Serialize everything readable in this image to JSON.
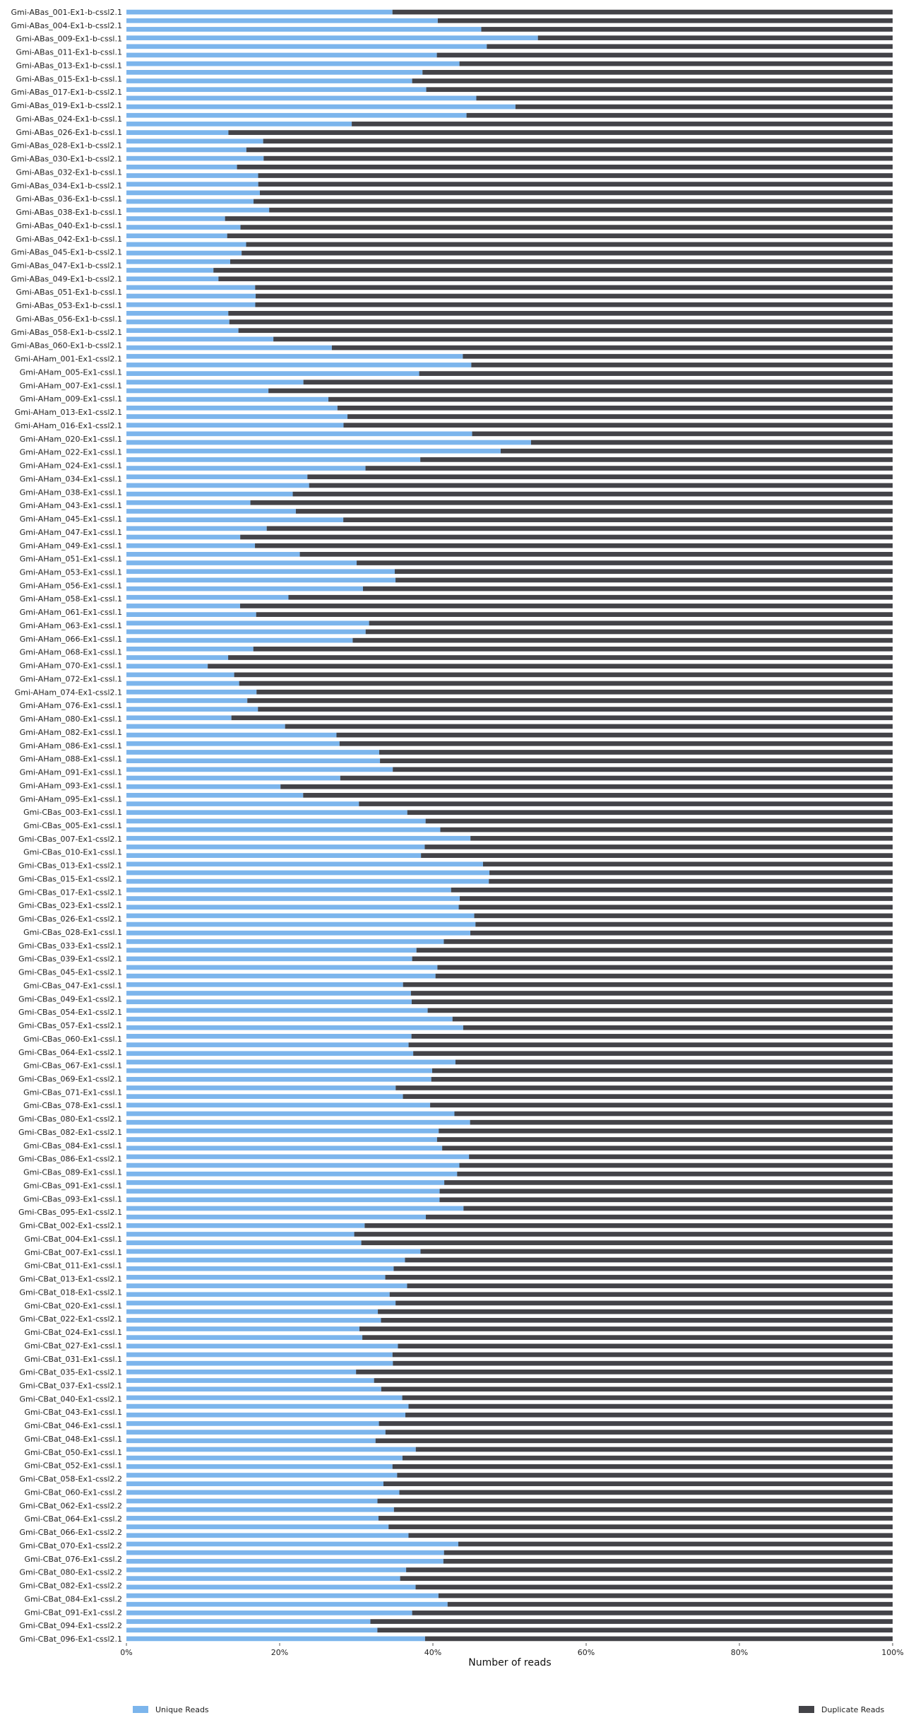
{
  "chart_data": {
    "type": "bar",
    "orientation": "horizontal",
    "stacked": true,
    "percent": true,
    "xlabel": "Number of reads",
    "xlim": [
      0,
      100
    ],
    "xticks": [
      "0%",
      "20%",
      "40%",
      "60%",
      "80%",
      "100%"
    ],
    "grid": false,
    "legend_position": "bottom",
    "series": [
      {
        "name": "Unique Reads",
        "color": "#7cb5ec"
      },
      {
        "name": "Duplicate Reads",
        "color": "#434348"
      }
    ],
    "categories": [
      "Gmi-ABas_001-Ex1-b-cssl2.1",
      "Gmi-ABas_004-Ex1-b-cssl2.1",
      "Gmi-ABas_009-Ex1-b-cssl.1",
      "Gmi-ABas_011-Ex1-b-cssl.1",
      "Gmi-ABas_013-Ex1-b-cssl.1",
      "Gmi-ABas_015-Ex1-b-cssl.1",
      "Gmi-ABas_017-Ex1-b-cssl2.1",
      "Gmi-ABas_019-Ex1-b-cssl2.1",
      "Gmi-ABas_024-Ex1-b-cssl.1",
      "Gmi-ABas_026-Ex1-b-cssl.1",
      "Gmi-ABas_028-Ex1-b-cssl2.1",
      "Gmi-ABas_030-Ex1-b-cssl2.1",
      "Gmi-ABas_032-Ex1-b-cssl.1",
      "Gmi-ABas_034-Ex1-b-cssl2.1",
      "Gmi-ABas_036-Ex1-b-cssl.1",
      "Gmi-ABas_038-Ex1-b-cssl.1",
      "Gmi-ABas_040-Ex1-b-cssl.1",
      "Gmi-ABas_042-Ex1-b-cssl.1",
      "Gmi-ABas_045-Ex1-b-cssl2.1",
      "Gmi-ABas_047-Ex1-b-cssl2.1",
      "Gmi-ABas_049-Ex1-b-cssl2.1",
      "Gmi-ABas_051-Ex1-b-cssl.1",
      "Gmi-ABas_053-Ex1-b-cssl.1",
      "Gmi-ABas_056-Ex1-b-cssl.1",
      "Gmi-ABas_058-Ex1-b-cssl2.1",
      "Gmi-ABas_060-Ex1-b-cssl2.1",
      "Gmi-AHam_001-Ex1-cssl2.1",
      "Gmi-AHam_005-Ex1-cssl.1",
      "Gmi-AHam_007-Ex1-cssl.1",
      "Gmi-AHam_009-Ex1-cssl.1",
      "Gmi-AHam_013-Ex1-cssl2.1",
      "Gmi-AHam_016-Ex1-cssl2.1",
      "Gmi-AHam_020-Ex1-cssl.1",
      "Gmi-AHam_022-Ex1-cssl.1",
      "Gmi-AHam_024-Ex1-cssl.1",
      "Gmi-AHam_034-Ex1-cssl.1",
      "Gmi-AHam_038-Ex1-cssl.1",
      "Gmi-AHam_043-Ex1-cssl.1",
      "Gmi-AHam_045-Ex1-cssl.1",
      "Gmi-AHam_047-Ex1-cssl.1",
      "Gmi-AHam_049-Ex1-cssl.1",
      "Gmi-AHam_051-Ex1-cssl.1",
      "Gmi-AHam_053-Ex1-cssl.1",
      "Gmi-AHam_056-Ex1-cssl.1",
      "Gmi-AHam_058-Ex1-cssl.1",
      "Gmi-AHam_061-Ex1-cssl.1",
      "Gmi-AHam_063-Ex1-cssl.1",
      "Gmi-AHam_066-Ex1-cssl.1",
      "Gmi-AHam_068-Ex1-cssl.1",
      "Gmi-AHam_070-Ex1-cssl.1",
      "Gmi-AHam_072-Ex1-cssl.1",
      "Gmi-AHam_074-Ex1-cssl2.1",
      "Gmi-AHam_076-Ex1-cssl.1",
      "Gmi-AHam_080-Ex1-cssl.1",
      "Gmi-AHam_082-Ex1-cssl.1",
      "Gmi-AHam_086-Ex1-cssl.1",
      "Gmi-AHam_088-Ex1-cssl.1",
      "Gmi-AHam_091-Ex1-cssl.1",
      "Gmi-AHam_093-Ex1-cssl.1",
      "Gmi-AHam_095-Ex1-cssl.1",
      "Gmi-CBas_003-Ex1-cssl.1",
      "Gmi-CBas_005-Ex1-cssl.1",
      "Gmi-CBas_007-Ex1-cssl2.1",
      "Gmi-CBas_010-Ex1-cssl.1",
      "Gmi-CBas_013-Ex1-cssl2.1",
      "Gmi-CBas_015-Ex1-cssl2.1",
      "Gmi-CBas_017-Ex1-cssl2.1",
      "Gmi-CBas_023-Ex1-cssl2.1",
      "Gmi-CBas_026-Ex1-cssl2.1",
      "Gmi-CBas_028-Ex1-cssl.1",
      "Gmi-CBas_033-Ex1-cssl2.1",
      "Gmi-CBas_039-Ex1-cssl2.1",
      "Gmi-CBas_045-Ex1-cssl2.1",
      "Gmi-CBas_047-Ex1-cssl.1",
      "Gmi-CBas_049-Ex1-cssl2.1",
      "Gmi-CBas_054-Ex1-cssl2.1",
      "Gmi-CBas_057-Ex1-cssl2.1",
      "Gmi-CBas_060-Ex1-cssl.1",
      "Gmi-CBas_064-Ex1-cssl2.1",
      "Gmi-CBas_067-Ex1-cssl.1",
      "Gmi-CBas_069-Ex1-cssl2.1",
      "Gmi-CBas_071-Ex1-cssl.1",
      "Gmi-CBas_078-Ex1-cssl.1",
      "Gmi-CBas_080-Ex1-cssl2.1",
      "Gmi-CBas_082-Ex1-cssl2.1",
      "Gmi-CBas_084-Ex1-cssl.1",
      "Gmi-CBas_086-Ex1-cssl2.1",
      "Gmi-CBas_089-Ex1-cssl.1",
      "Gmi-CBas_091-Ex1-cssl.1",
      "Gmi-CBas_093-Ex1-cssl.1",
      "Gmi-CBas_095-Ex1-cssl2.1",
      "Gmi-CBat_002-Ex1-cssl2.1",
      "Gmi-CBat_004-Ex1-cssl.1",
      "Gmi-CBat_007-Ex1-cssl.1",
      "Gmi-CBat_011-Ex1-cssl.1",
      "Gmi-CBat_013-Ex1-cssl2.1",
      "Gmi-CBat_018-Ex1-cssl2.1",
      "Gmi-CBat_020-Ex1-cssl.1",
      "Gmi-CBat_022-Ex1-cssl2.1",
      "Gmi-CBat_024-Ex1-cssl.1",
      "Gmi-CBat_027-Ex1-cssl.1",
      "Gmi-CBat_031-Ex1-cssl.1",
      "Gmi-CBat_035-Ex1-cssl2.1",
      "Gmi-CBat_037-Ex1-cssl2.1",
      "Gmi-CBat_040-Ex1-cssl2.1",
      "Gmi-CBat_043-Ex1-cssl.1",
      "Gmi-CBat_046-Ex1-cssl.1",
      "Gmi-CBat_048-Ex1-cssl.1",
      "Gmi-CBat_050-Ex1-cssl.1",
      "Gmi-CBat_052-Ex1-cssl.1",
      "Gmi-CBat_058-Ex1-cssl2.2",
      "Gmi-CBat_060-Ex1-cssl.2",
      "Gmi-CBat_062-Ex1-cssl2.2",
      "Gmi-CBat_064-Ex1-cssl.2",
      "Gmi-CBat_066-Ex1-cssl2.2",
      "Gmi-CBat_070-Ex1-cssl2.2",
      "Gmi-CBat_076-Ex1-cssl.2",
      "Gmi-CBat_080-Ex1-cssl2.2",
      "Gmi-CBat_082-Ex1-cssl2.2",
      "Gmi-CBat_084-Ex1-cssl.2",
      "Gmi-CBat_091-Ex1-cssl.2",
      "Gmi-CBat_094-Ex1-cssl2.2",
      "Gmi-CBat_096-Ex1-cssl2.1"
    ],
    "unique_percent": [
      34,
      46,
      55,
      40,
      42,
      40,
      41,
      49,
      41,
      15,
      15,
      15,
      18,
      18,
      14,
      16,
      15,
      16,
      14,
      15,
      13,
      15,
      14,
      15,
      17,
      20,
      49,
      43,
      14,
      25,
      30,
      30,
      52,
      46,
      34,
      25,
      22,
      18,
      30,
      13,
      16,
      28,
      36,
      34,
      18,
      14,
      32,
      30,
      15,
      13,
      12,
      14,
      20,
      16,
      24,
      31,
      35,
      33,
      18,
      28,
      37,
      40,
      42,
      38,
      46,
      47,
      44,
      43,
      46,
      43,
      41,
      40,
      37,
      39,
      40,
      38,
      43,
      37,
      39,
      41,
      38,
      38,
      39,
      42,
      42,
      42,
      43,
      40,
      43,
      41,
      43,
      32,
      32,
      36,
      34,
      37,
      37,
      33,
      32,
      32,
      35,
      34,
      32,
      36,
      35,
      34,
      34,
      34,
      35,
      37,
      38,
      33,
      32,
      35,
      37,
      41,
      40,
      39,
      37,
      39,
      39,
      32,
      39
    ]
  },
  "legend": {
    "unique_label": "Unique Reads",
    "duplicate_label": "Duplicate Reads"
  }
}
